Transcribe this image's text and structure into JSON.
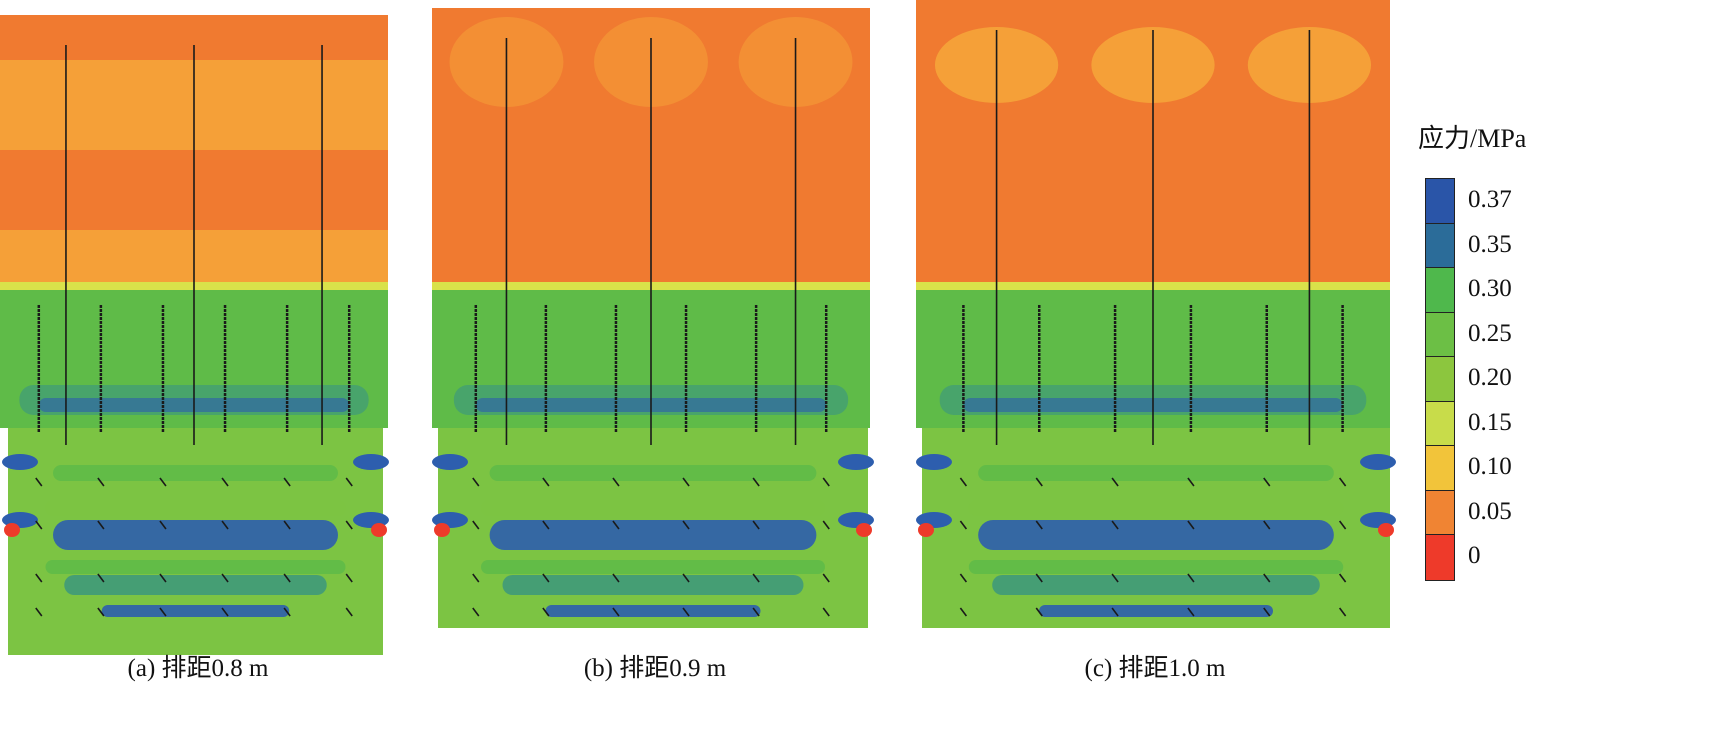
{
  "panels": [
    {
      "id": "a",
      "caption": "(a)  排距0.8 m"
    },
    {
      "id": "b",
      "caption": "(b)  排距0.9 m"
    },
    {
      "id": "c",
      "caption": "(c)  排距1.0 m"
    }
  ],
  "legend": {
    "title": "应力/MPa",
    "labels": [
      "0.37",
      "0.35",
      "0.30",
      "0.25",
      "0.20",
      "0.15",
      "0.10",
      "0.05",
      "0"
    ],
    "colors": [
      "#2a55a8",
      "#2b6c99",
      "#4fb84c",
      "#6cbf45",
      "#8cc63e",
      "#c8dc4a",
      "#f2c43a",
      "#f08433",
      "#ee3a2a"
    ]
  },
  "colors": {
    "orange_dark": "#f07a30",
    "orange_light": "#f5a038",
    "yellow": "#d9e24a",
    "green": "#5fbb48",
    "green_light": "#7cc443",
    "teal": "#3f9a7a",
    "blue": "#2d5eae",
    "anchor": "#1a1a1a"
  }
}
